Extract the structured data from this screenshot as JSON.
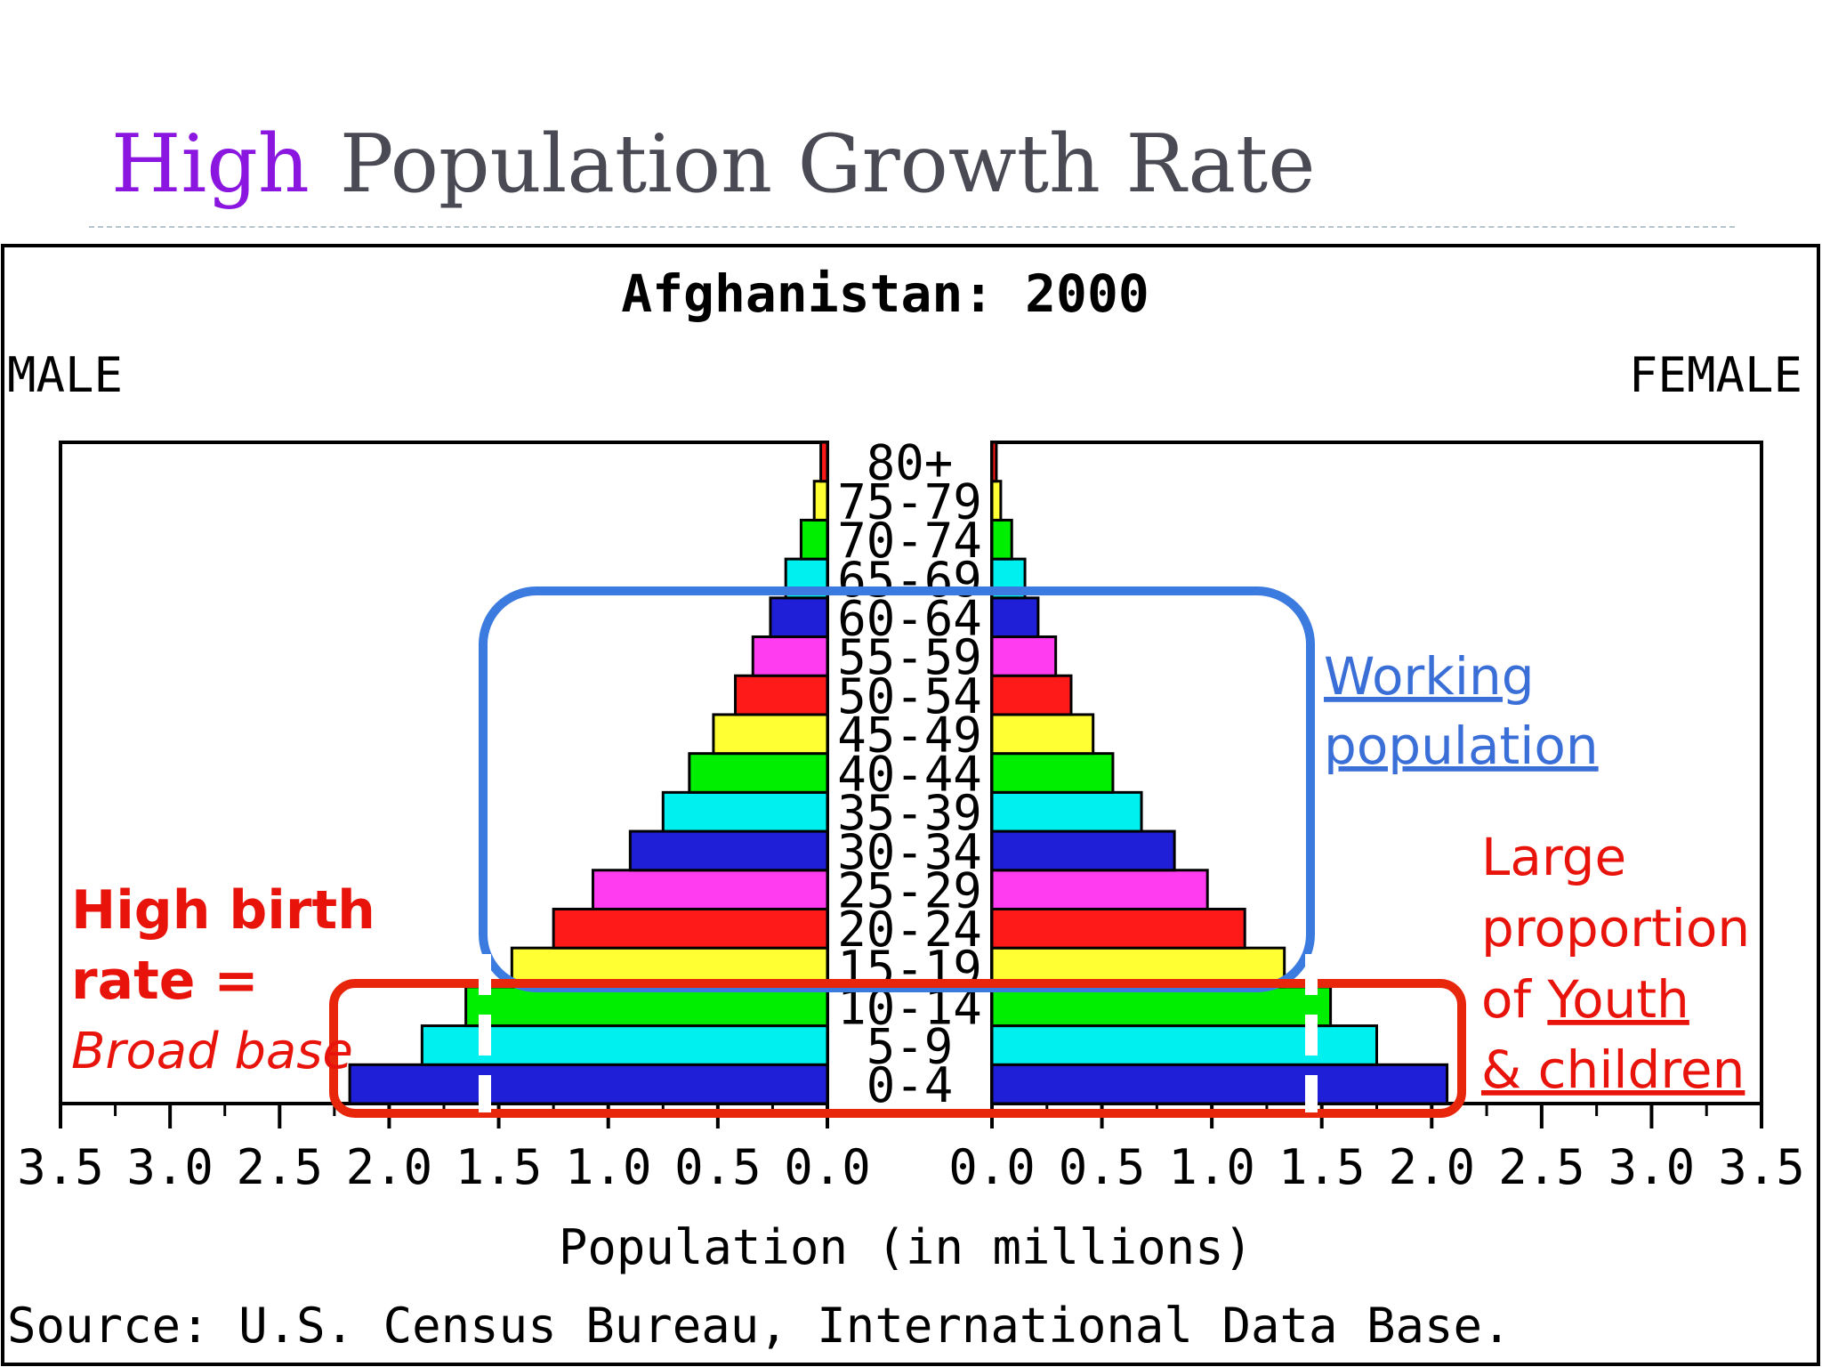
{
  "slide": {
    "title_accent": "High",
    "title_rest": "Population Growth Rate"
  },
  "chart_data": {
    "type": "bar",
    "title": "Afghanistan: 2000",
    "left_label": "MALE",
    "right_label": "FEMALE",
    "xlabel": "Population (in millions)",
    "source": "Source: U.S. Census Bureau, International Data Base.",
    "xlim": [
      0,
      3.5
    ],
    "ticks": [
      "3.5",
      "3.0",
      "2.5",
      "2.0",
      "1.5",
      "1.0",
      "0.5",
      "0.0"
    ],
    "ticks_right": [
      "0.0",
      "0.5",
      "1.0",
      "1.5",
      "2.0",
      "2.5",
      "3.0",
      "3.5"
    ],
    "categories": [
      "0-4",
      "5-9",
      "10-14",
      "15-19",
      "20-24",
      "25-29",
      "30-34",
      "35-39",
      "40-44",
      "45-49",
      "50-54",
      "55-59",
      "60-64",
      "65-69",
      "70-74",
      "75-79",
      "80+"
    ],
    "bar_colors": [
      "#1f1fd8",
      "#00f0f0",
      "#00ee00",
      "#ffff33",
      "#ff1a1a",
      "#ff3cf0",
      "#1f1fd8",
      "#00f0f0",
      "#00ee00",
      "#ffff33",
      "#ff1a1a",
      "#ff3cf0",
      "#1f1fd8",
      "#00f0f0",
      "#00ee00",
      "#ffff33",
      "#ff1a1a"
    ],
    "series": [
      {
        "name": "MALE",
        "values": [
          2.18,
          1.85,
          1.65,
          1.44,
          1.25,
          1.07,
          0.9,
          0.75,
          0.63,
          0.52,
          0.42,
          0.34,
          0.26,
          0.19,
          0.12,
          0.06,
          0.03
        ]
      },
      {
        "name": "FEMALE",
        "values": [
          2.07,
          1.75,
          1.54,
          1.33,
          1.15,
          0.98,
          0.83,
          0.68,
          0.55,
          0.46,
          0.36,
          0.29,
          0.21,
          0.15,
          0.09,
          0.04,
          0.02
        ]
      }
    ]
  },
  "annotations": {
    "working": {
      "line1": "Working",
      "line2": "population",
      "color": "#3b6fd8"
    },
    "birth": {
      "line1": "High birth",
      "line2": "rate =",
      "line3": "Broad base",
      "color": "#e8140c"
    },
    "youth": {
      "line1": "Large",
      "line2": "proportion",
      "line3": "of ",
      "line3b": "Youth",
      "line4": "& children",
      "color": "#e8140c"
    }
  }
}
